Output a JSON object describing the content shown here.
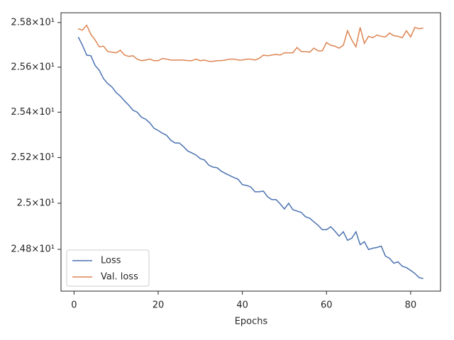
{
  "chart_data": {
    "type": "line",
    "xlabel": "Epochs",
    "x": [
      1,
      2,
      3,
      4,
      5,
      6,
      7,
      8,
      9,
      10,
      11,
      12,
      13,
      14,
      15,
      16,
      17,
      18,
      19,
      20,
      21,
      22,
      23,
      24,
      25,
      26,
      27,
      28,
      29,
      30,
      31,
      32,
      33,
      34,
      35,
      36,
      37,
      38,
      39,
      40,
      41,
      42,
      43,
      44,
      45,
      46,
      47,
      48,
      49,
      50,
      51,
      52,
      53,
      54,
      55,
      56,
      57,
      58,
      59,
      60,
      61,
      62,
      63,
      64,
      65,
      66,
      67,
      68,
      69,
      70,
      71,
      72,
      73,
      74,
      75,
      76,
      77,
      78,
      79,
      80,
      81,
      82,
      83
    ],
    "series": [
      {
        "name": "Loss",
        "color": "#4c72b0",
        "values": [
          25.735,
          25.698,
          25.654,
          25.651,
          25.608,
          25.586,
          25.549,
          25.527,
          25.512,
          25.487,
          25.471,
          25.45,
          25.431,
          25.409,
          25.4,
          25.378,
          25.369,
          25.353,
          25.329,
          25.319,
          25.307,
          25.298,
          25.276,
          25.264,
          25.264,
          25.248,
          25.229,
          25.22,
          25.211,
          25.195,
          25.189,
          25.167,
          25.158,
          25.155,
          25.14,
          25.13,
          25.121,
          25.112,
          25.105,
          25.081,
          25.078,
          25.071,
          25.05,
          25.05,
          25.053,
          25.028,
          25.016,
          25.016,
          24.997,
          24.975,
          25.0,
          24.972,
          24.966,
          24.96,
          24.941,
          24.935,
          24.919,
          24.904,
          24.885,
          24.885,
          24.898,
          24.879,
          24.857,
          24.876,
          24.839,
          24.848,
          24.876,
          24.82,
          24.833,
          24.799,
          24.805,
          24.808,
          24.814,
          24.771,
          24.761,
          24.74,
          24.746,
          24.727,
          24.721,
          24.709,
          24.696,
          24.678,
          24.674
        ]
      },
      {
        "name": "Val. loss",
        "color": "#dd8452",
        "values": [
          25.772,
          25.766,
          25.788,
          25.747,
          25.722,
          25.691,
          25.694,
          25.67,
          25.667,
          25.664,
          25.676,
          25.654,
          25.648,
          25.651,
          25.636,
          25.629,
          25.632,
          25.636,
          25.629,
          25.629,
          25.639,
          25.636,
          25.632,
          25.632,
          25.632,
          25.632,
          25.629,
          25.629,
          25.636,
          25.629,
          25.632,
          25.626,
          25.626,
          25.629,
          25.629,
          25.632,
          25.636,
          25.636,
          25.632,
          25.632,
          25.636,
          25.636,
          25.632,
          25.639,
          25.654,
          25.651,
          25.654,
          25.657,
          25.654,
          25.664,
          25.664,
          25.664,
          25.688,
          25.67,
          25.67,
          25.667,
          25.685,
          25.673,
          25.673,
          25.71,
          25.698,
          25.694,
          25.685,
          25.698,
          25.763,
          25.722,
          25.691,
          25.778,
          25.707,
          25.738,
          25.732,
          25.744,
          25.738,
          25.735,
          25.753,
          25.741,
          25.738,
          25.732,
          25.763,
          25.735,
          25.778,
          25.772,
          25.775
        ]
      }
    ],
    "xlim": [
      -3.1,
      87.1
    ],
    "xticks": [
      0,
      20,
      40,
      60,
      80
    ],
    "ylim": [
      24.62,
      25.844
    ],
    "yscale": "log",
    "yticks": [
      {
        "value": 24.8,
        "label": "2.48×10¹"
      },
      {
        "value": 25,
        "label": "2.5×10¹"
      },
      {
        "value": 25.2,
        "label": "2.52×10¹"
      },
      {
        "value": 25.4,
        "label": "2.54×10¹"
      },
      {
        "value": 25.6,
        "label": "2.56×10¹"
      },
      {
        "value": 25.8,
        "label": "2.58×10¹"
      }
    ],
    "grid": false,
    "legend": "lower left"
  }
}
